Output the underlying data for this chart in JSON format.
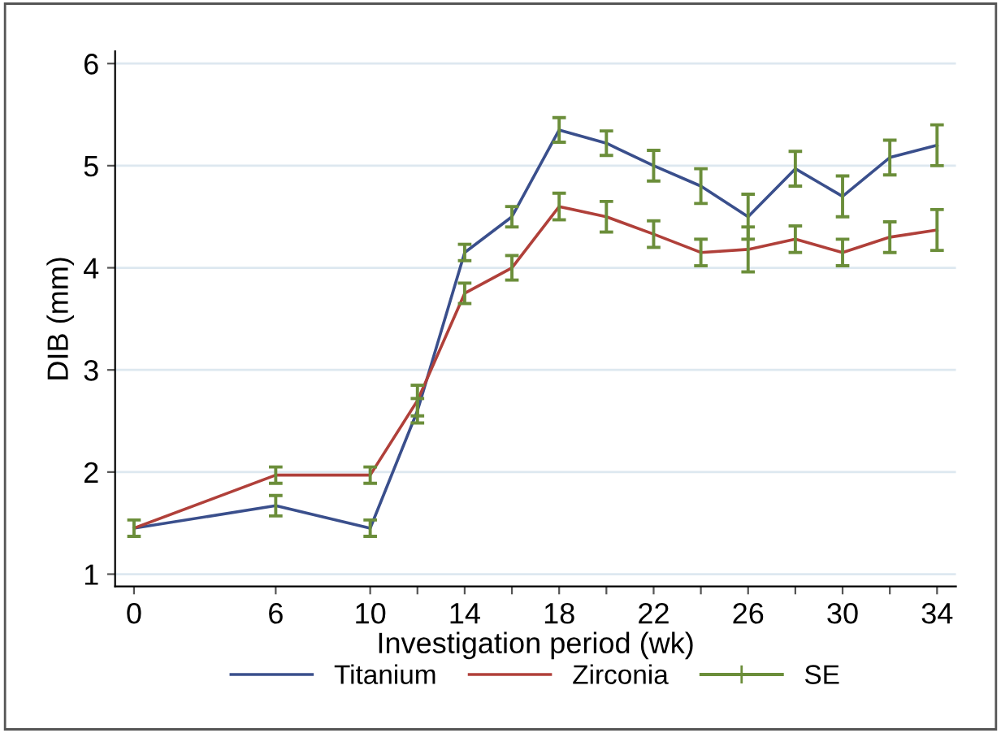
{
  "chart_data": {
    "type": "line",
    "xlabel": "Investigation period (wk)",
    "ylabel": "DIB (mm)",
    "x": [
      0,
      6,
      10,
      12,
      14,
      16,
      18,
      20,
      22,
      24,
      26,
      28,
      30,
      32,
      34
    ],
    "series": [
      {
        "name": "Titanium",
        "color": "#3a4f8c",
        "values": [
          1.45,
          1.67,
          1.45,
          2.6,
          4.15,
          4.5,
          5.35,
          5.22,
          5.0,
          4.8,
          4.5,
          4.97,
          4.7,
          5.08,
          5.2
        ],
        "errors": [
          0.08,
          0.1,
          0.08,
          0.12,
          0.08,
          0.1,
          0.12,
          0.12,
          0.15,
          0.17,
          0.22,
          0.17,
          0.2,
          0.17,
          0.2
        ]
      },
      {
        "name": "Zirconia",
        "color": "#b0403a",
        "values": [
          1.45,
          1.97,
          1.97,
          2.7,
          3.75,
          4.0,
          4.6,
          4.5,
          4.33,
          4.15,
          4.18,
          4.28,
          4.15,
          4.3,
          4.37
        ],
        "errors": [
          null,
          0.08,
          0.08,
          0.15,
          0.1,
          0.12,
          0.13,
          0.15,
          0.13,
          0.13,
          0.22,
          0.13,
          0.13,
          0.15,
          0.2
        ]
      }
    ],
    "annotations": [
      "SE"
    ],
    "xlim": [
      -0.8,
      34.8
    ],
    "ylim": [
      0.88,
      6.12
    ],
    "xticks": [
      0,
      6,
      10,
      {
        "value": 12,
        "label": null
      },
      14,
      {
        "value": 16,
        "label": null
      },
      18,
      {
        "value": 20,
        "label": null
      },
      22,
      {
        "value": 24,
        "label": null
      },
      26,
      {
        "value": 28,
        "label": null
      },
      30,
      {
        "value": 32,
        "label": null
      },
      34
    ],
    "yticks": [
      1,
      2,
      3,
      4,
      5,
      6
    ],
    "grid": "y",
    "legend": "bottom",
    "marker": "none",
    "line_style": "solid"
  }
}
